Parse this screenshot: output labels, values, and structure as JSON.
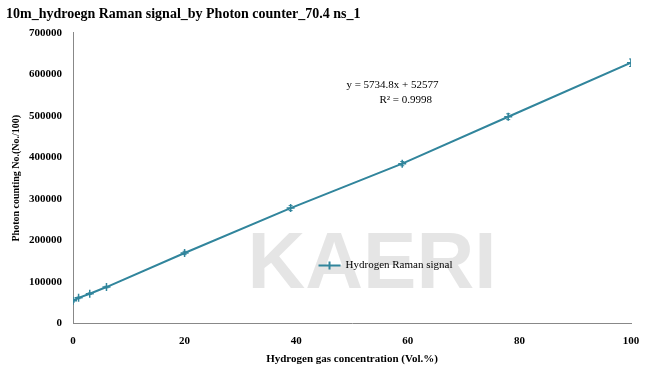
{
  "chart_data": {
    "type": "line",
    "title": "10m_hydroegn Raman signal_by Photon counter_70.4 ns_1",
    "x_label": "Hydrogen gas concentration (Vol.%)",
    "y_label": "Photon counting No.(No./100)",
    "annotations": [
      "y = 5734.8x + 52577",
      "R² = 0.9998"
    ],
    "watermark": "KAERI",
    "series": [
      {
        "name": "Hydrogen Raman signal",
        "color": "#31859c",
        "marker": "cross",
        "line_style": "solid",
        "x": [
          0,
          1,
          3,
          6,
          20,
          39,
          59,
          78,
          100
        ],
        "values": [
          55000,
          62000,
          72000,
          88000,
          170000,
          278000,
          385000,
          498000,
          628000
        ],
        "errors": [
          3000,
          2000,
          2000,
          2000,
          4000,
          6000,
          5000,
          7000,
          9000
        ]
      }
    ],
    "xlim": [
      0,
      100
    ],
    "xticks": [
      0,
      20,
      40,
      60,
      80,
      100
    ],
    "ylim": [
      0,
      700000
    ],
    "yticks": [
      0,
      100000,
      200000,
      300000,
      400000,
      500000,
      600000,
      700000
    ],
    "grid": false,
    "legend": "right"
  }
}
